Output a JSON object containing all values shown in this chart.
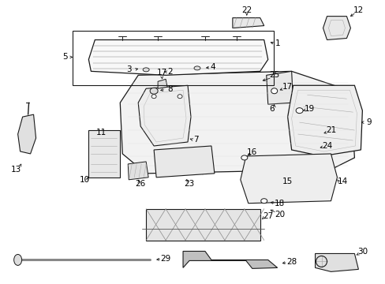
{
  "bg_color": "#ffffff",
  "line_color": "#1a1a1a",
  "label_color": "#000000",
  "figsize": [
    4.89,
    3.6
  ],
  "dpi": 100,
  "font_size": 7.5
}
